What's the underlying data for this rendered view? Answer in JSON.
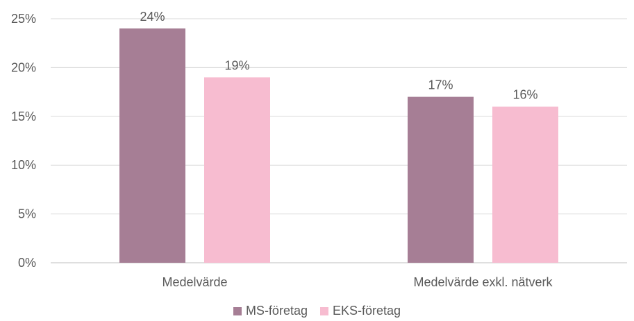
{
  "chart_data": {
    "type": "bar",
    "categories": [
      "Medelvärde",
      "Medelvärde exkl. nätverk"
    ],
    "series": [
      {
        "name": "MS-företag",
        "values": [
          24,
          17
        ],
        "labels": [
          "24%",
          "17%"
        ],
        "color": "#a67e95"
      },
      {
        "name": "EKS-företag",
        "values": [
          19,
          16
        ],
        "labels": [
          "19%",
          "16%"
        ],
        "color": "#f7bcd0"
      }
    ],
    "yticks": [
      "0%",
      "5%",
      "10%",
      "15%",
      "20%",
      "25%"
    ],
    "ylim": [
      0,
      25
    ],
    "grid": true,
    "legend_position": "bottom"
  }
}
